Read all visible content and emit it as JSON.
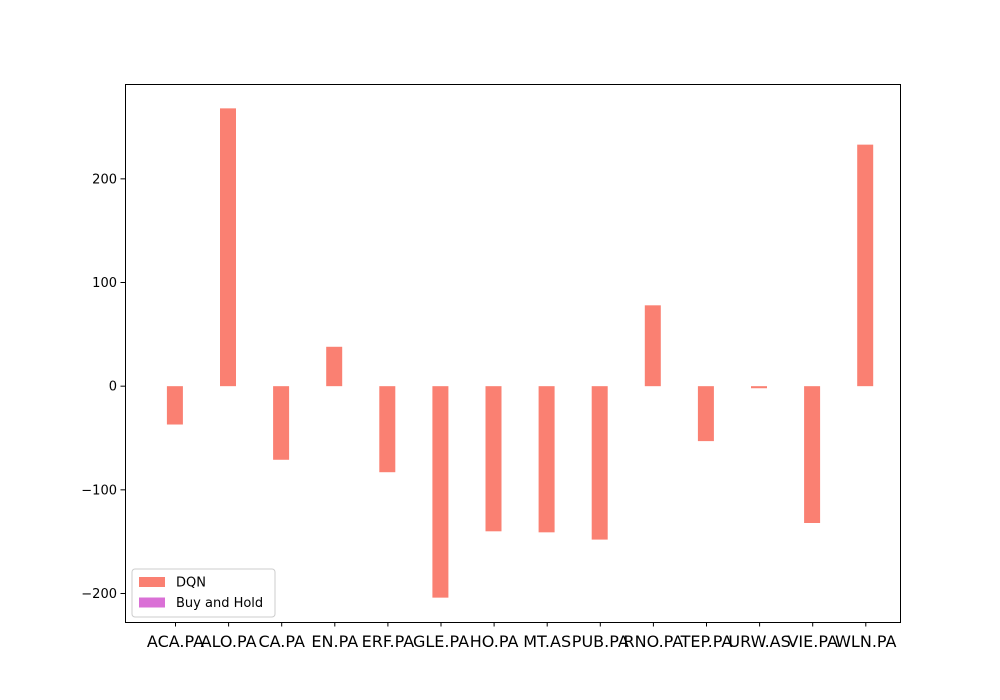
{
  "chart_data": {
    "type": "bar",
    "categories": [
      "ACA.PA",
      "ALO.PA",
      "CA.PA",
      "EN.PA",
      "ERF.PA",
      "GLE.PA",
      "HO.PA",
      "MT.AS",
      "PUB.PA",
      "RNO.PA",
      "TEP.PA",
      "URW.AS",
      "VIE.PA",
      "WLN.PA"
    ],
    "series": [
      {
        "name": "DQN",
        "color": "#fa8072",
        "values": [
          -37,
          268,
          -71,
          38,
          -83,
          -204,
          -140,
          -141,
          -148,
          78,
          -53,
          -2,
          -132,
          233
        ]
      },
      {
        "name": "Buy and Hold",
        "color": "#da70d6",
        "values": [
          0,
          0,
          0,
          0,
          0,
          0,
          0,
          0,
          0,
          0,
          0,
          0,
          0,
          0
        ]
      }
    ],
    "ylim": [
      -227.5,
      291.5
    ],
    "yticks": [
      -200,
      -100,
      0,
      100,
      200
    ],
    "ytick_labels": [
      "−200",
      "−100",
      "0",
      "100",
      "200"
    ],
    "legend_position": "lower-left",
    "title": "",
    "xlabel": "",
    "ylabel": ""
  }
}
